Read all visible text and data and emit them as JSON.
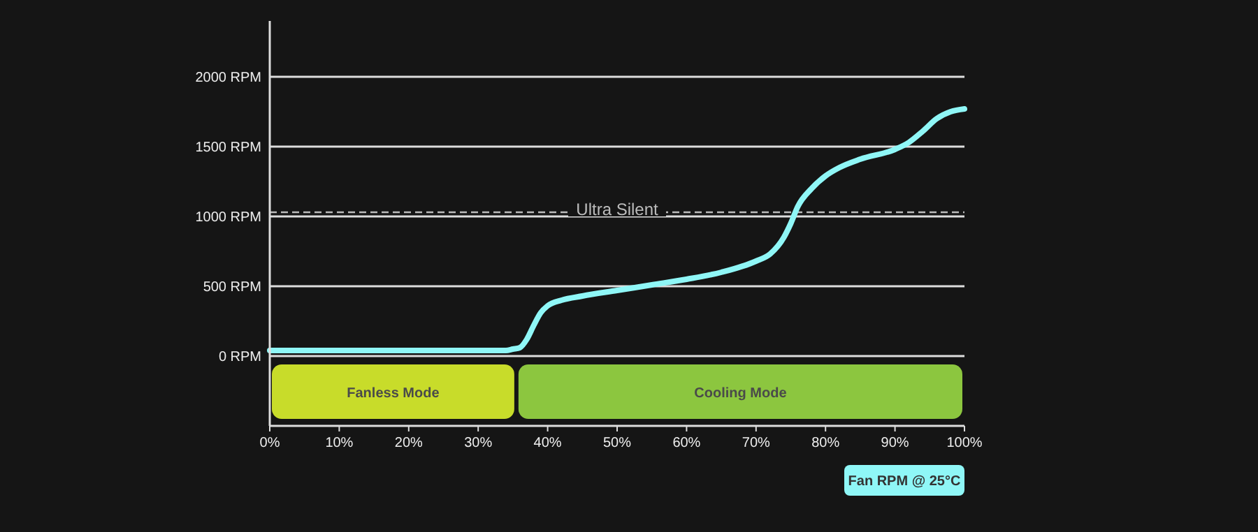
{
  "chart_data": {
    "type": "line",
    "xlim": [
      0,
      100
    ],
    "xticks": [
      {
        "value": 0,
        "label": "0%"
      },
      {
        "value": 10,
        "label": "10%"
      },
      {
        "value": 20,
        "label": "20%"
      },
      {
        "value": 30,
        "label": "30%"
      },
      {
        "value": 40,
        "label": "40%"
      },
      {
        "value": 50,
        "label": "50%"
      },
      {
        "value": 60,
        "label": "60%"
      },
      {
        "value": 70,
        "label": "70%"
      },
      {
        "value": 80,
        "label": "80%"
      },
      {
        "value": 90,
        "label": "90%"
      },
      {
        "value": 100,
        "label": "100%"
      }
    ],
    "ylim": [
      -500,
      2400
    ],
    "yticks": [
      {
        "value": 0,
        "label": "0 RPM"
      },
      {
        "value": 500,
        "label": "500 RPM"
      },
      {
        "value": 1000,
        "label": "1000 RPM"
      },
      {
        "value": 1500,
        "label": "1500 RPM"
      },
      {
        "value": 2000,
        "label": "2000 RPM"
      }
    ],
    "grid": "y",
    "legend": "bottom right",
    "marker": "none",
    "line_style": "solid",
    "x": [
      0,
      10,
      20,
      30,
      34,
      35,
      36,
      37,
      38,
      39,
      40,
      42,
      45,
      50,
      55,
      60,
      65,
      70,
      72,
      74,
      75,
      76,
      78,
      80,
      82,
      85,
      90,
      92,
      94,
      96,
      98,
      100
    ],
    "series": [
      {
        "name": "Fan RPM @ 25°C",
        "color": "#8ff7f7",
        "values": [
          40,
          40,
          40,
          40,
          40,
          50,
          60,
          120,
          220,
          310,
          360,
          400,
          430,
          470,
          510,
          550,
          600,
          680,
          730,
          850,
          950,
          1070,
          1200,
          1290,
          1350,
          1410,
          1480,
          1530,
          1610,
          1700,
          1750,
          1770
        ]
      }
    ],
    "ref_lines": [
      {
        "axis": "y",
        "value": 1030,
        "label": "Ultra Silent",
        "line_style": "dashed",
        "color": "#bbbbbb"
      }
    ],
    "bands": [
      {
        "axis": "x",
        "from": 0,
        "to": 35.5,
        "label": "Fanless Mode",
        "color": "#c8dc2a"
      },
      {
        "axis": "x",
        "from": 35.5,
        "to": 100,
        "label": "Cooling Mode",
        "color": "#8cc63f"
      }
    ]
  }
}
